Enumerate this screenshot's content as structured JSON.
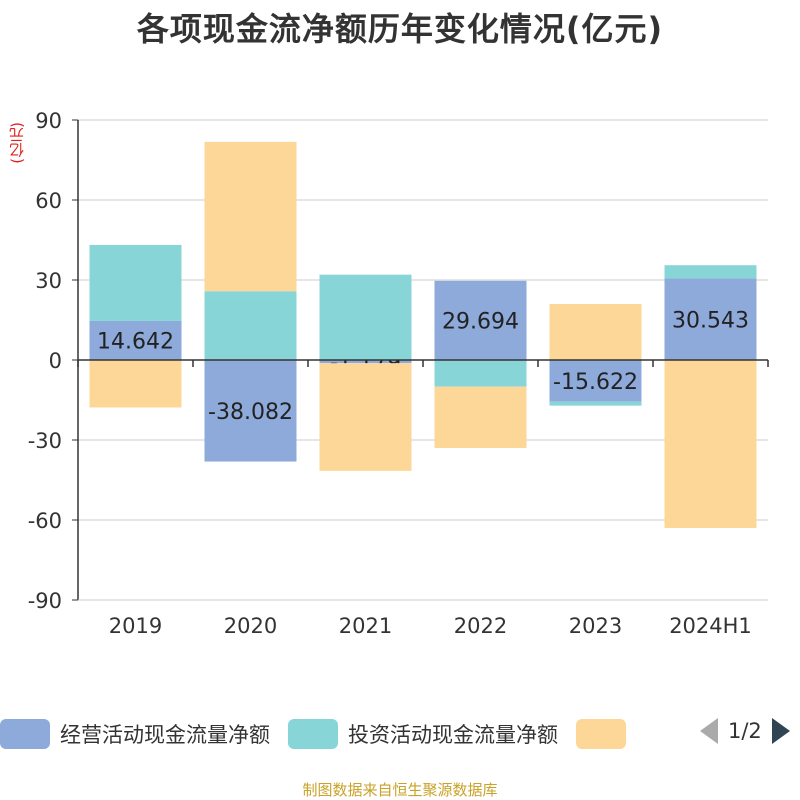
{
  "title": "各项现金流净额历年变化情况(亿元)",
  "unit_label": "(亿元)",
  "colors": {
    "operating": "#8eaadb",
    "investing": "#88d5d8",
    "financing": "#fdd798",
    "axis": "#333333",
    "grid": "#cccccc",
    "unit": "#e02020",
    "footer": "#c9a227"
  },
  "legend": {
    "items": [
      {
        "label": "经营活动现金流量净额",
        "color": "#8eaadb"
      },
      {
        "label": "投资活动现金流量净额",
        "color": "#88d5d8"
      },
      {
        "label": "",
        "color": "#fdd798"
      }
    ],
    "page_text": "1/2"
  },
  "footer": "制图数据来自恒生聚源数据库",
  "chart_data": {
    "type": "bar",
    "stacked": true,
    "categories": [
      "2019",
      "2020",
      "2021",
      "2022",
      "2023",
      "2024H1"
    ],
    "ylim": [
      -90,
      90
    ],
    "yticks": [
      90,
      60,
      30,
      0,
      -30,
      -60,
      -90
    ],
    "grid": true,
    "legend_position": "bottom",
    "series": [
      {
        "name": "经营活动现金流量净额",
        "values": [
          14.642,
          -38.082,
          -1.179,
          29.694,
          -15.622,
          30.543
        ],
        "labels": [
          "14.642",
          "-38.082",
          "-1.179",
          "29.694",
          "-15.622",
          "30.543"
        ]
      },
      {
        "name": "投资活动现金流量净额",
        "values": [
          28.5,
          25.8,
          32.0,
          -10.0,
          -1.5,
          5.0
        ]
      },
      {
        "values": [
          -17.8,
          56.0,
          -40.4,
          -23.0,
          21.0,
          -63.0
        ]
      }
    ]
  }
}
